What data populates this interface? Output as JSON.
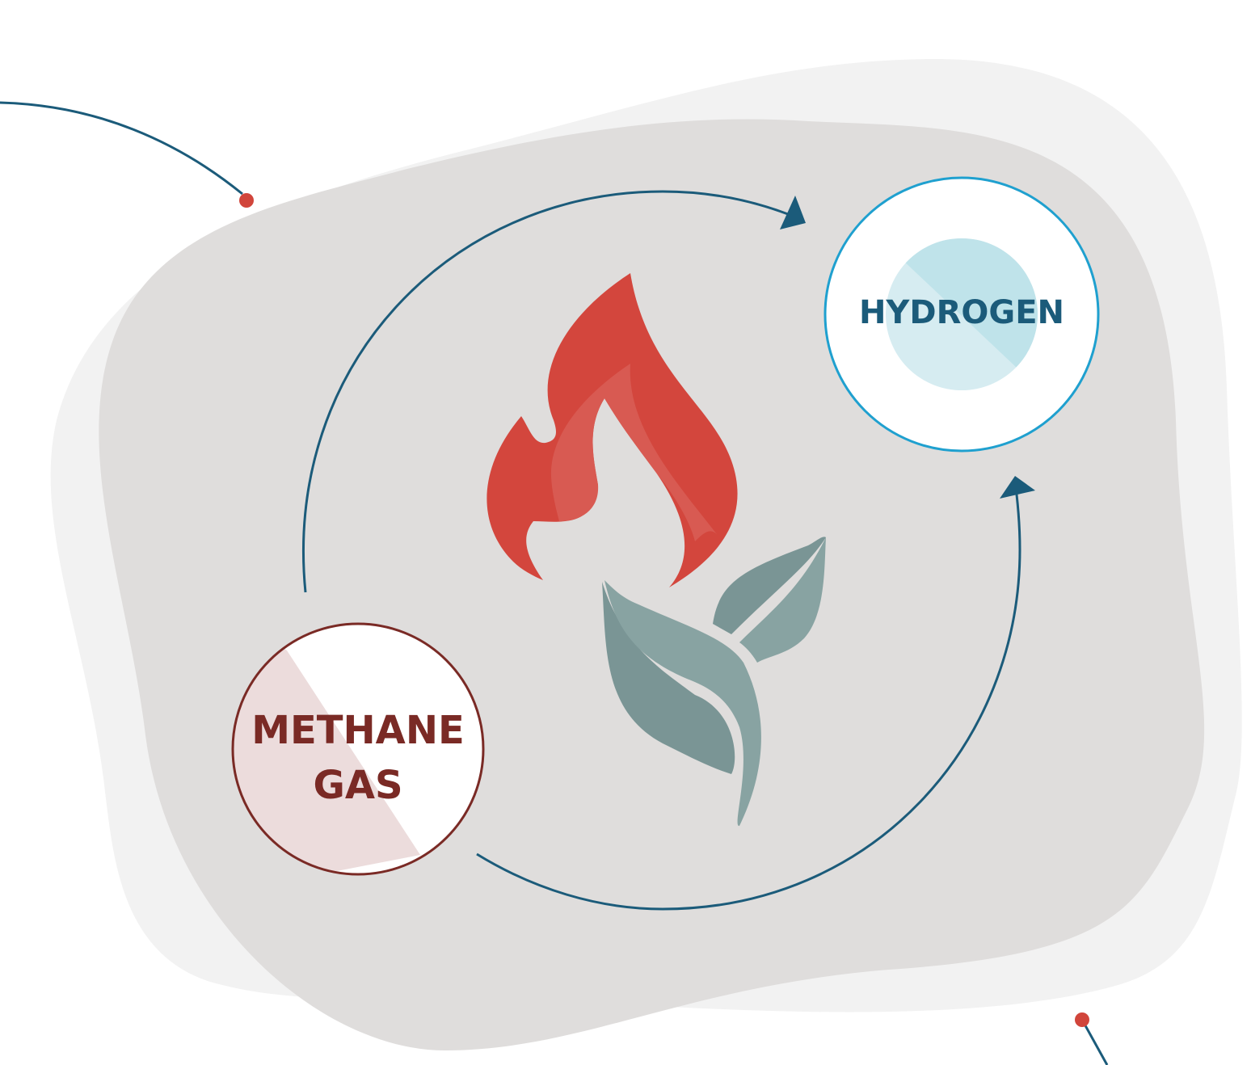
{
  "nodes": [
    {
      "label": [
        "METHANE",
        "GAS"
      ]
    },
    {
      "label": [
        "HYDROGEN"
      ]
    }
  ]
}
